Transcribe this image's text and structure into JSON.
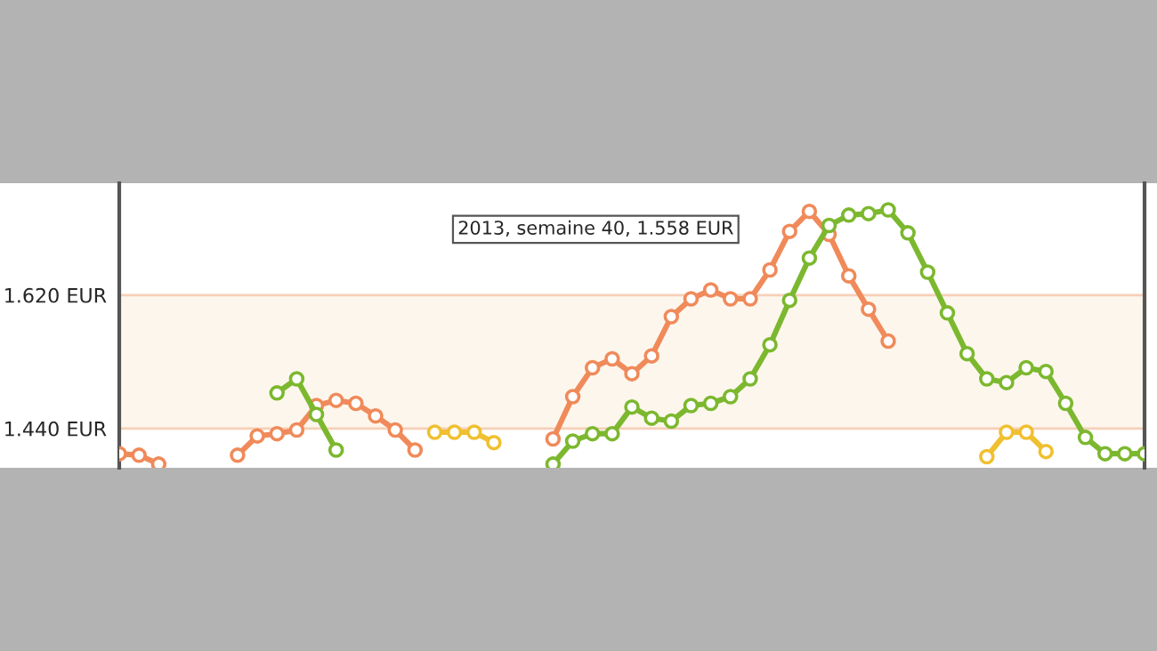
{
  "chart_data": {
    "type": "line",
    "categories": [
      null,
      null,
      null,
      null,
      null,
      null,
      null,
      null,
      null,
      null,
      null,
      null,
      null,
      null,
      null,
      null,
      null,
      null,
      null,
      null,
      null,
      null,
      null,
      null,
      null,
      null,
      null,
      null,
      null,
      null,
      null,
      null,
      null,
      null,
      null,
      null,
      null,
      null,
      null,
      null,
      null,
      null,
      null,
      null,
      null,
      null,
      null,
      null,
      null,
      null,
      null,
      null,
      null
    ],
    "series": [
      {
        "color": "#f08a5a",
        "values": [
          1.406,
          1.404,
          1.392,
          null,
          null,
          null,
          null,
          null,
          null,
          null,
          null,
          null,
          null,
          null,
          null,
          null,
          null,
          null,
          null,
          null,
          null,
          null,
          null,
          null,
          null,
          null,
          null,
          null,
          null,
          null,
          null,
          null,
          null,
          null,
          null,
          null,
          null,
          null,
          null,
          null,
          null,
          null,
          null,
          null,
          null,
          null,
          null,
          null,
          null,
          null,
          null,
          null,
          null
        ]
      },
      {
        "color": "#f08a5a",
        "values": [
          null,
          null,
          null,
          null,
          null,
          null,
          1.404,
          1.43,
          1.433,
          1.438,
          1.471,
          1.478,
          1.474,
          1.457,
          1.438,
          1.411,
          null,
          null,
          null,
          null,
          null,
          null,
          null,
          null,
          null,
          null,
          null,
          null,
          null,
          null,
          null,
          null,
          null,
          null,
          null,
          null,
          null,
          null,
          null,
          null,
          null,
          null,
          null,
          null,
          null,
          null,
          null,
          null,
          null,
          null,
          null,
          null,
          null
        ]
      },
      {
        "color": "#f08a5a",
        "values": [
          null,
          null,
          null,
          null,
          null,
          null,
          null,
          null,
          null,
          null,
          null,
          null,
          null,
          null,
          null,
          null,
          null,
          null,
          null,
          null,
          null,
          null,
          1.426,
          1.483,
          1.522,
          1.534,
          1.514,
          1.538,
          1.591,
          1.615,
          1.627,
          1.615,
          1.615,
          1.654,
          1.706,
          1.733,
          1.702,
          1.646,
          1.601,
          1.558,
          null,
          null,
          null,
          null,
          null,
          null,
          null,
          null,
          null,
          null,
          null,
          null,
          null
        ]
      },
      {
        "color": "#7cb82f",
        "values": [
          null,
          null,
          null,
          null,
          null,
          null,
          null,
          null,
          1.488,
          1.507,
          1.459,
          1.411,
          null,
          null,
          null,
          null,
          null,
          null,
          null,
          null,
          null,
          null,
          null,
          null,
          null,
          null,
          null,
          null,
          null,
          null,
          null,
          null,
          null,
          null,
          null,
          null,
          null,
          null,
          null,
          null,
          null,
          null,
          null,
          null,
          null,
          null,
          null,
          null,
          null,
          null,
          null,
          null,
          null
        ]
      },
      {
        "color": "#7cb82f",
        "values": [
          null,
          null,
          null,
          null,
          null,
          null,
          null,
          null,
          null,
          null,
          null,
          null,
          null,
          null,
          null,
          null,
          null,
          null,
          null,
          null,
          null,
          null,
          1.392,
          1.423,
          1.433,
          1.433,
          1.469,
          1.454,
          1.45,
          1.471,
          1.474,
          1.483,
          1.507,
          1.553,
          1.613,
          1.67,
          1.714,
          1.728,
          1.73,
          1.735,
          1.704,
          1.651,
          1.596,
          1.541,
          1.507,
          1.502,
          1.522,
          1.517,
          1.474,
          1.428,
          1.406,
          1.406,
          1.406
        ]
      },
      {
        "color": "#f0c030",
        "values": [
          null,
          null,
          null,
          null,
          null,
          null,
          null,
          null,
          null,
          null,
          null,
          null,
          null,
          null,
          null,
          null,
          1.435,
          1.435,
          1.435,
          1.421,
          null,
          null,
          null,
          null,
          null,
          null,
          null,
          null,
          null,
          null,
          null,
          null,
          null,
          null,
          null,
          null,
          null,
          null,
          null,
          null,
          null,
          null,
          null,
          null,
          null,
          null,
          null,
          null,
          null,
          null,
          null,
          null,
          null
        ]
      },
      {
        "color": "#f0c030",
        "values": [
          null,
          null,
          null,
          null,
          null,
          null,
          null,
          null,
          null,
          null,
          null,
          null,
          null,
          null,
          null,
          null,
          null,
          null,
          null,
          null,
          null,
          null,
          null,
          null,
          null,
          null,
          null,
          null,
          null,
          null,
          null,
          null,
          null,
          null,
          null,
          null,
          null,
          null,
          null,
          null,
          null,
          null,
          null,
          null,
          1.402,
          1.435,
          1.435,
          1.409,
          null,
          null,
          null,
          null,
          null
        ]
      }
    ],
    "ylim": [
      1.387,
      1.771
    ],
    "yticks": [
      {
        "value": 1.44,
        "label": "1.440 EUR"
      },
      {
        "value": 1.62,
        "label": "1.620 EUR"
      }
    ],
    "tick_labels": "y",
    "bands": [
      {
        "axis": "y",
        "from": 1.44,
        "to": 1.62,
        "color": "#fdf6ec"
      }
    ],
    "grid": "y",
    "marker": "circle",
    "line_style": "solid",
    "legend": false,
    "annotations": [
      "2013, semaine 40, 1.558 EUR"
    ]
  }
}
